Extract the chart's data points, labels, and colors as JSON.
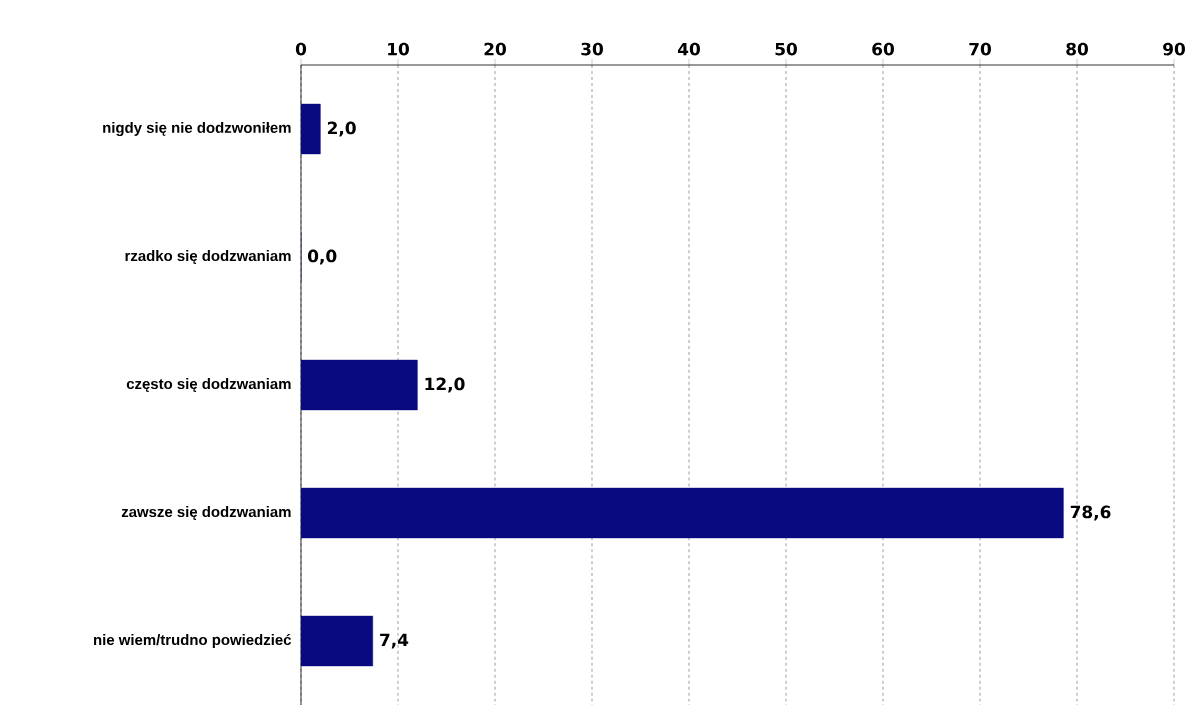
{
  "chart_data": {
    "type": "bar",
    "orientation": "horizontal",
    "categories": [
      "nigdy się nie dodzwoniłem",
      "rzadko się dodzwaniam",
      "często się dodzwaniam",
      "zawsze się dodzwaniam",
      "nie wiem/trudno powiedzieć"
    ],
    "values": [
      2.0,
      0.0,
      12.0,
      78.6,
      7.4
    ],
    "value_labels": [
      "2,0",
      "0,0",
      "12,0",
      "78,6",
      "7,4"
    ],
    "color": "#0a0a80",
    "xlim": [
      0,
      90
    ],
    "xticks": [
      0,
      10,
      20,
      30,
      40,
      50,
      60,
      70,
      80,
      90
    ],
    "grid": "x"
  }
}
